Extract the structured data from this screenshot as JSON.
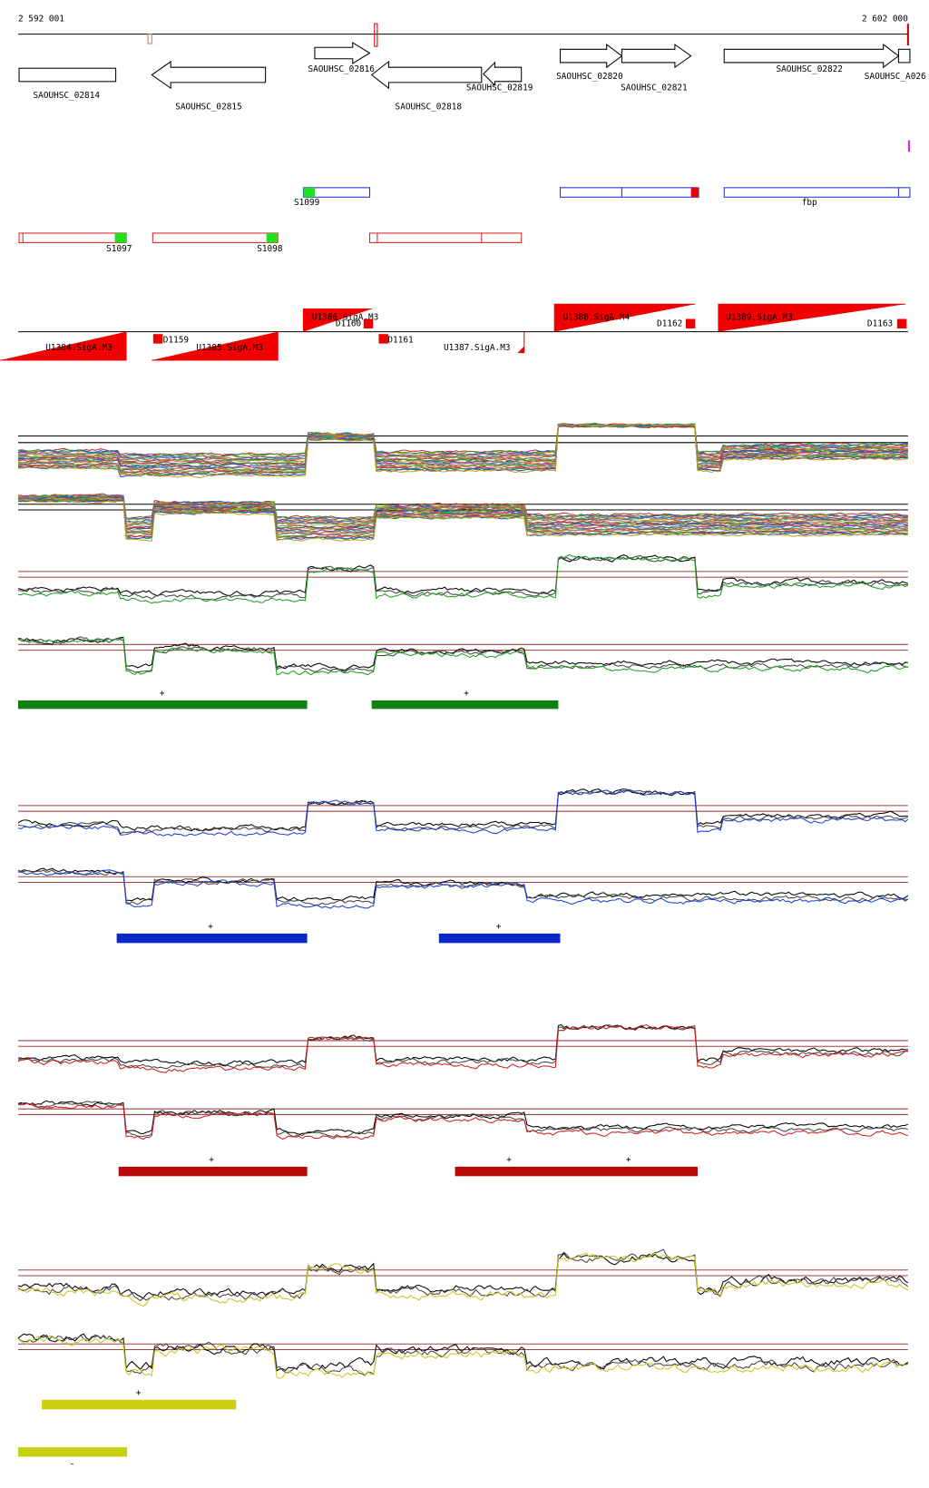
{
  "ruler": {
    "start": "2 592 001",
    "end": "2 602 000"
  },
  "genes": [
    "SAOUHSC_02814",
    "SAOUHSC_02815",
    "SAOUHSC_02816",
    "SAOUHSC_02818",
    "SAOUHSC_02819",
    "SAOUHSC_02820",
    "SAOUHSC_02821",
    "SAOUHSC_02822",
    "SAOUHSC_A026"
  ],
  "features": {
    "blue": [
      "S1099",
      "fbp"
    ],
    "red": [
      "S1097",
      "S1098"
    ]
  },
  "promoters": [
    "U1386.SigA.M3",
    "U1388.SigA.M4",
    "U1389.SigA.M3",
    "U1384.SigA.M3",
    "U1385.SigA.M3",
    "U1387.SigA.M3"
  ],
  "terminators": [
    "D1160",
    "D1162",
    "D1163",
    "D1159",
    "D1161"
  ],
  "signs": [
    "+",
    "+",
    "+",
    "+",
    "+",
    "+",
    "+",
    "+",
    "-"
  ]
}
